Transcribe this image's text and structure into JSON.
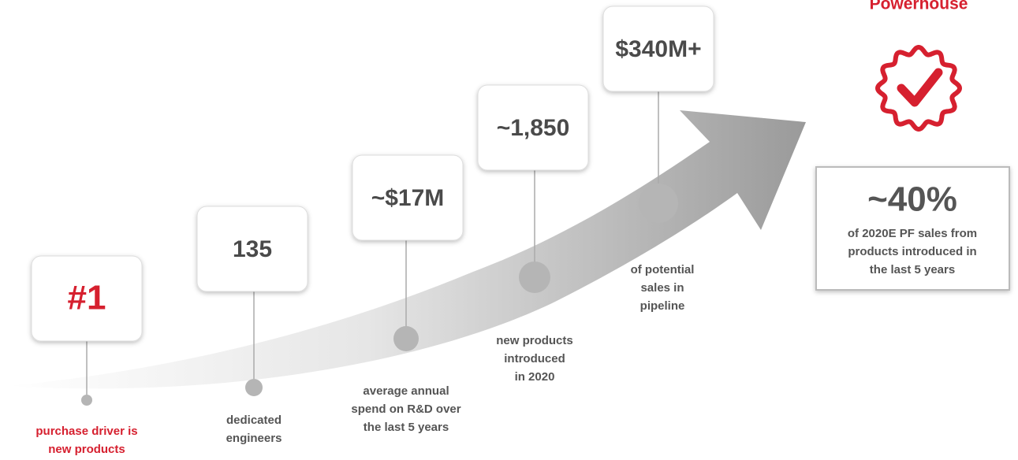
{
  "header": {
    "title": "Powerhouse"
  },
  "milestones": [
    {
      "value": "#1",
      "caption": [
        "purchase driver is",
        "new products"
      ]
    },
    {
      "value": "135",
      "caption": [
        "dedicated",
        "engineers"
      ]
    },
    {
      "value": "~$17M",
      "caption": [
        "average annual",
        "spend on R&D over",
        "the last 5 years"
      ]
    },
    {
      "value": "~1,850",
      "caption": [
        "new products",
        "introduced",
        "in 2020"
      ]
    },
    {
      "value": "$340M+",
      "caption": [
        "of potential",
        "sales in",
        "pipeline"
      ]
    }
  ],
  "highlight": {
    "value": "~40%",
    "caption": [
      "of 2020E PF sales from",
      "products introduced in",
      "the last 5 years"
    ]
  }
}
